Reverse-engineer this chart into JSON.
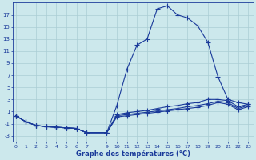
{
  "xlabel": "Graphe des températures (°C)",
  "bg_color": "#cce8ec",
  "grid_color": "#aacdd4",
  "line_color": "#1a3a9a",
  "xlim": [
    -0.3,
    23.5
  ],
  "ylim": [
    -4,
    19
  ],
  "yticks": [
    -3,
    -1,
    1,
    3,
    5,
    7,
    9,
    11,
    13,
    15,
    17
  ],
  "x_ticks": [
    0,
    1,
    2,
    3,
    4,
    5,
    6,
    7,
    9,
    10,
    11,
    12,
    13,
    14,
    15,
    16,
    17,
    18,
    19,
    20,
    21,
    22,
    23
  ],
  "curve1_x": [
    0,
    1,
    2,
    3,
    4,
    5,
    6,
    7,
    9,
    10,
    11,
    12,
    13,
    14,
    15,
    16,
    17,
    18,
    19,
    20,
    21,
    22,
    23
  ],
  "curve1_y": [
    0.3,
    -0.7,
    -1.3,
    -1.5,
    -1.6,
    -1.7,
    -1.8,
    -2.5,
    -2.5,
    2.0,
    8.0,
    12.0,
    13.0,
    18.0,
    18.5,
    17.0,
    16.5,
    15.2,
    12.5,
    6.8,
    3.0,
    2.5,
    2.2
  ],
  "curve2_x": [
    0,
    1,
    2,
    3,
    4,
    5,
    6,
    7,
    9,
    10,
    11,
    12,
    13,
    14,
    15,
    16,
    17,
    18,
    19,
    20,
    21,
    22,
    23
  ],
  "curve2_y": [
    0.3,
    -0.7,
    -1.3,
    -1.5,
    -1.6,
    -1.7,
    -1.8,
    -2.5,
    -2.5,
    0.5,
    0.8,
    1.0,
    1.2,
    1.5,
    1.8,
    2.0,
    2.3,
    2.5,
    3.0,
    3.0,
    2.8,
    1.8,
    2.2
  ],
  "curve3_x": [
    0,
    1,
    2,
    3,
    4,
    5,
    6,
    7,
    9,
    10,
    11,
    12,
    13,
    14,
    15,
    16,
    17,
    18,
    19,
    20,
    21,
    22,
    23
  ],
  "curve3_y": [
    0.3,
    -0.7,
    -1.3,
    -1.5,
    -1.6,
    -1.7,
    -1.8,
    -2.5,
    -2.5,
    0.3,
    0.5,
    0.7,
    0.9,
    1.1,
    1.3,
    1.5,
    1.8,
    2.0,
    2.3,
    2.7,
    2.5,
    1.5,
    2.0
  ],
  "curve4_x": [
    0,
    1,
    2,
    3,
    4,
    5,
    6,
    7,
    9,
    10,
    11,
    12,
    13,
    14,
    15,
    16,
    17,
    18,
    19,
    20,
    21,
    22,
    23
  ],
  "curve4_y": [
    0.3,
    -0.7,
    -1.3,
    -1.5,
    -1.6,
    -1.7,
    -1.8,
    -2.5,
    -2.5,
    0.1,
    0.3,
    0.5,
    0.7,
    0.9,
    1.1,
    1.3,
    1.5,
    1.7,
    2.0,
    2.5,
    2.2,
    1.3,
    1.8
  ]
}
